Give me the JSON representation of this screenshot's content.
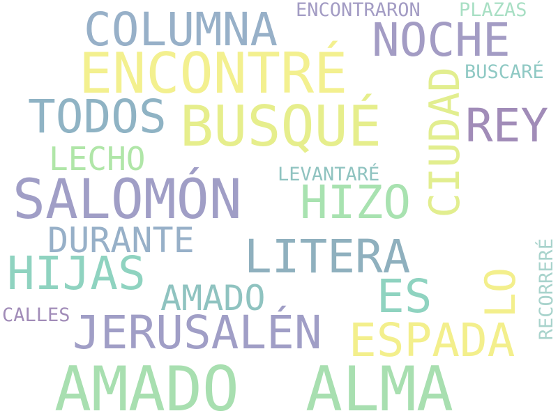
{
  "word_cloud": {
    "words": [
      {
        "text": "AMADO",
        "color": "#a8dfb0"
      },
      {
        "text": "ALMA",
        "color": "#a8dfb0"
      },
      {
        "text": "SALOMÓN",
        "color": "#a09ec6"
      },
      {
        "text": "BUSQUÉ",
        "color": "#e6ee8c"
      },
      {
        "text": "ENCONTRÉ",
        "color": "#f3f08f"
      },
      {
        "text": "COLUMNA",
        "color": "#97b0c8"
      },
      {
        "text": "NOCHE",
        "color": "#a39cc4"
      },
      {
        "text": "TODOS",
        "color": "#8fb3c4"
      },
      {
        "text": "REY",
        "color": "#a18cb8"
      },
      {
        "text": "CIUDAD",
        "color": "#e2ee8f"
      },
      {
        "text": "JERUSALÉN",
        "color": "#a09ec6"
      },
      {
        "text": "LITERA",
        "color": "#8fb0be"
      },
      {
        "text": "HIJAS",
        "color": "#8fd3c0"
      },
      {
        "text": "ESPADA",
        "color": "#f3ef8c"
      },
      {
        "text": "HIZO",
        "color": "#a8e2b0"
      },
      {
        "text": "ES",
        "color": "#8fd3c0"
      },
      {
        "text": "LO",
        "color": "#f3ef8c"
      },
      {
        "text": "DURANTE",
        "color": "#97b0c8"
      },
      {
        "text": "AMADO",
        "color": "#8fc3c0"
      },
      {
        "text": "LECHO",
        "color": "#b0e6a8"
      },
      {
        "text": "LEVANTARÉ",
        "color": "#8fc3c0"
      },
      {
        "text": "ENCONTRARON",
        "color": "#a39cc4"
      },
      {
        "text": "PLAZAS",
        "color": "#a8dfc4"
      },
      {
        "text": "BUSCARÉ",
        "color": "#8fc9c4"
      },
      {
        "text": "RECORRERÉ",
        "color": "#a8d3cc"
      },
      {
        "text": "CALLES",
        "color": "#a18cb8"
      }
    ]
  }
}
